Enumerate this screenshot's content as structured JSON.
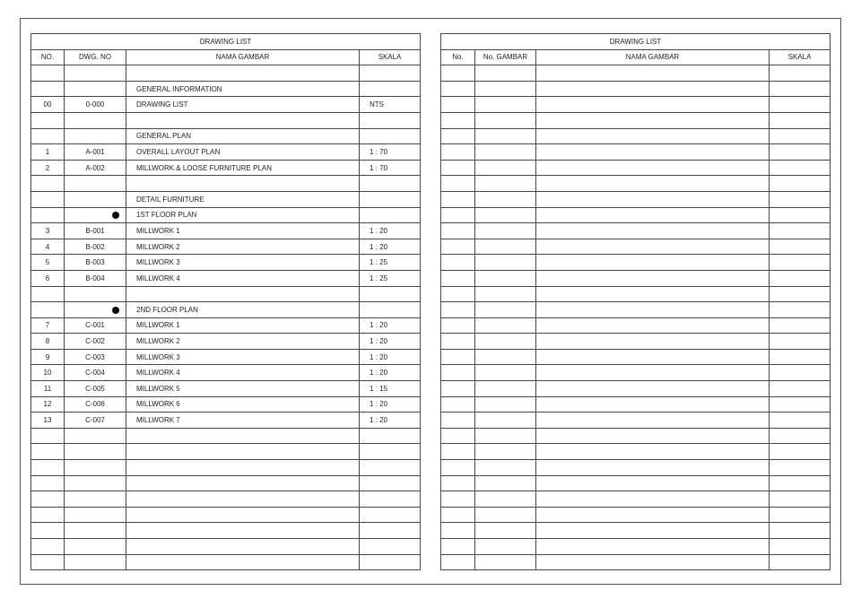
{
  "left_table": {
    "title": "DRAWING LIST",
    "headers": [
      "NO.",
      "DWG. NO",
      "NAMA GAMBAR",
      "SKALA"
    ],
    "rows": [
      {},
      {
        "name": "GENERAL INFORMATION"
      },
      {
        "no": "00",
        "dwg": "0-000",
        "name": "DRAWING LIST",
        "skala": "NTS"
      },
      {},
      {
        "name": "GENERAL PLAN"
      },
      {
        "no": "1",
        "dwg": "A-001",
        "name": "OVERALL LAYOUT PLAN",
        "skala": "1 : 70"
      },
      {
        "no": "2",
        "dwg": "A-002",
        "name": "MILLWORK & LOOSE FURNITURE PLAN",
        "skala": "1 : 70"
      },
      {},
      {
        "name": "DETAIL FURNITURE"
      },
      {
        "bullet": true,
        "name": "1ST FLOOR PLAN"
      },
      {
        "no": "3",
        "dwg": "B-001",
        "name": "MILLWORK 1",
        "skala": "1 : 20"
      },
      {
        "no": "4",
        "dwg": "B-002",
        "name": "MILLWORK 2",
        "skala": "1 : 20"
      },
      {
        "no": "5",
        "dwg": "B-003",
        "name": "MILLWORK 3",
        "skala": "1 : 25"
      },
      {
        "no": "6",
        "dwg": "B-004",
        "name": "MILLWORK 4",
        "skala": "1 : 25"
      },
      {},
      {
        "bullet": true,
        "name": "2ND FLOOR PLAN"
      },
      {
        "no": "7",
        "dwg": "C-001",
        "name": "MILLWORK 1",
        "skala": "1 : 20"
      },
      {
        "no": "8",
        "dwg": "C-002",
        "name": "MILLWORK 2",
        "skala": "1 : 20"
      },
      {
        "no": "9",
        "dwg": "C-003",
        "name": "MILLWORK 3",
        "skala": "1 : 20"
      },
      {
        "no": "10",
        "dwg": "C-004",
        "name": "MILLWORK 4",
        "skala": "1 : 20"
      },
      {
        "no": "11",
        "dwg": "C-005",
        "name": "MILLWORK 5",
        "skala": "1 : 15"
      },
      {
        "no": "12",
        "dwg": "C-006",
        "name": "MILLWORK 6",
        "skala": "1 : 20"
      },
      {
        "no": "13",
        "dwg": "C-007",
        "name": "MILLWORK 7",
        "skala": "1 : 20"
      }
    ]
  },
  "right_table": {
    "title": "DRAWING LIST",
    "headers": [
      "No.",
      "No. GAMBAR",
      "NAMA GAMBAR",
      "SKALA"
    ],
    "rows": []
  }
}
